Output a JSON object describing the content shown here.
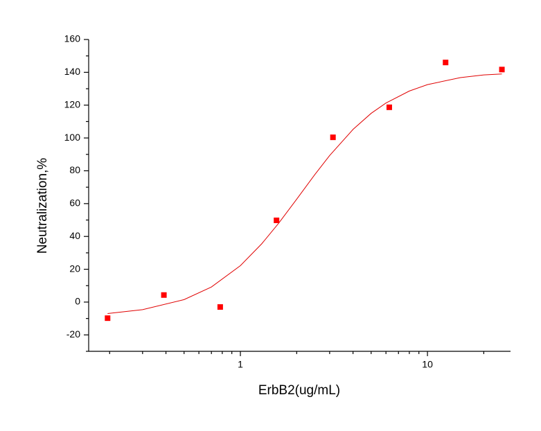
{
  "chart_data": {
    "type": "scatter",
    "x_label": "ErbB2(ug/mL)",
    "y_label": "Neutralization,%",
    "x_scale": "log",
    "xlim": [
      0.1545,
      27.8
    ],
    "xticks": [
      1,
      10
    ],
    "xminor_ticks": [
      0.2,
      0.3,
      0.4,
      0.5,
      0.6,
      0.7,
      0.8,
      0.9,
      2,
      3,
      4,
      5,
      6,
      7,
      8,
      9,
      20
    ],
    "ylim": [
      -30,
      160
    ],
    "yticks": [
      -20,
      0,
      20,
      40,
      60,
      80,
      100,
      120,
      140,
      160
    ],
    "yminor_ticks": [
      -30,
      -10,
      10,
      30,
      50,
      70,
      90,
      110,
      130,
      150
    ],
    "series": [
      {
        "type": "scatter",
        "color": "#ff0000",
        "x": [
          0.195,
          0.39,
          0.78,
          1.56,
          3.125,
          6.25,
          12.5,
          25
        ],
        "values": [
          -9.8,
          4.3,
          -3,
          49.8,
          100.4,
          118.7,
          146,
          141.7
        ]
      },
      {
        "type": "line",
        "color": "#e00000",
        "x": [
          0.195,
          0.3,
          0.5,
          0.7,
          1,
          1.3,
          1.6,
          2,
          2.5,
          3,
          4,
          5,
          6,
          8,
          10,
          15,
          20,
          25
        ],
        "values": [
          -7,
          -4.6,
          1.5,
          9.2,
          22.2,
          35.5,
          48,
          62.7,
          77.7,
          89.3,
          105.2,
          115,
          121.3,
          128.6,
          132.5,
          136.8,
          138.4,
          139
        ]
      }
    ]
  }
}
